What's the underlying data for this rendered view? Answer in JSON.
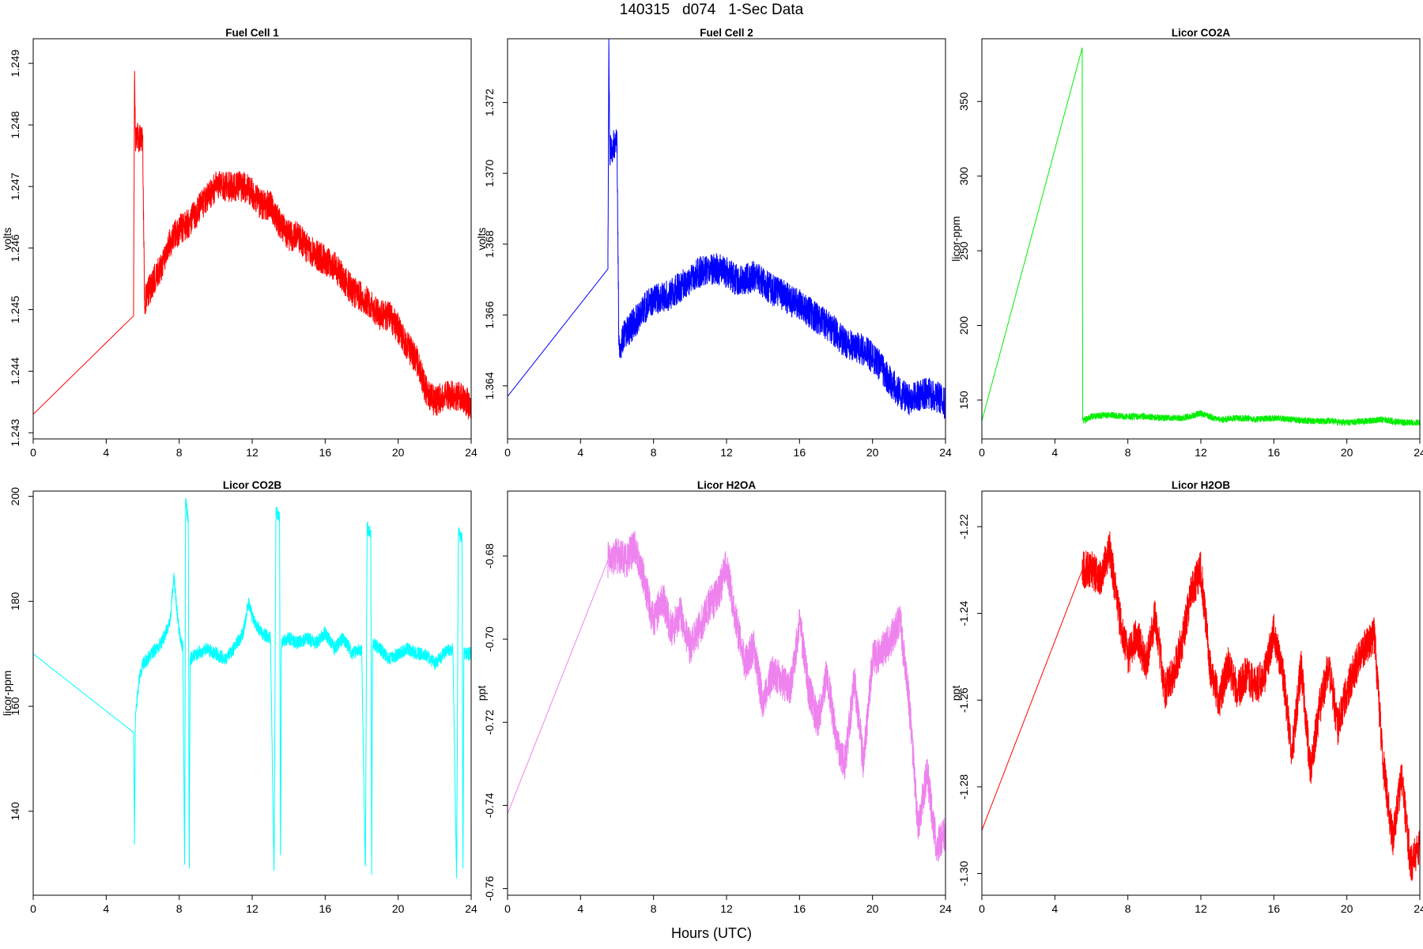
{
  "figure": {
    "title": "140315   d074   1-Sec Data",
    "xlabel": "Hours (UTC)"
  },
  "chart_data": [
    {
      "type": "line",
      "title": "Fuel Cell 1",
      "ylabel": "volts",
      "color": "#ff0000",
      "xlim": [
        0,
        24
      ],
      "ylim": [
        1.2429,
        1.2494
      ],
      "xticks": [
        0,
        4,
        8,
        12,
        16,
        20,
        24
      ],
      "yticks": [
        1.243,
        1.244,
        1.245,
        1.246,
        1.247,
        1.248,
        1.249
      ],
      "ytick_labels": [
        "1.243",
        "1.244",
        "1.245",
        "1.246",
        "1.247",
        "1.248",
        "1.249"
      ],
      "x": [
        0,
        5.5,
        5.55,
        5.6,
        5.8,
        6.0,
        6.1,
        6.2,
        6.5,
        7.0,
        7.5,
        8.0,
        8.5,
        9.0,
        9.5,
        10.0,
        10.5,
        11.0,
        11.5,
        12.0,
        12.5,
        13.0,
        13.5,
        14.0,
        14.5,
        15.0,
        15.5,
        16.0,
        16.5,
        17.0,
        17.5,
        18.0,
        18.5,
        19.0,
        19.5,
        20.0,
        20.5,
        21.0,
        21.5,
        22.0,
        22.5,
        23.0,
        23.5,
        24.0
      ],
      "y": [
        1.2433,
        1.2449,
        1.2489,
        1.2478,
        1.2478,
        1.2478,
        1.2451,
        1.2452,
        1.2454,
        1.2457,
        1.2461,
        1.2463,
        1.2464,
        1.2466,
        1.2468,
        1.247,
        1.247,
        1.247,
        1.247,
        1.2469,
        1.2467,
        1.2467,
        1.2464,
        1.2462,
        1.2462,
        1.246,
        1.2459,
        1.2458,
        1.2457,
        1.2455,
        1.2453,
        1.2452,
        1.2451,
        1.2449,
        1.2449,
        1.2447,
        1.2444,
        1.2442,
        1.2437,
        1.2435,
        1.2436,
        1.2436,
        1.2436,
        1.2434
      ],
      "noise": 0.00025
    },
    {
      "type": "line",
      "title": "Fuel Cell 2",
      "ylabel": "volts",
      "color": "#0000ff",
      "xlim": [
        0,
        24
      ],
      "ylim": [
        1.3625,
        1.3738
      ],
      "xticks": [
        0,
        4,
        8,
        12,
        16,
        20,
        24
      ],
      "yticks": [
        1.364,
        1.366,
        1.368,
        1.37,
        1.372
      ],
      "ytick_labels": [
        "1.364",
        "1.366",
        "1.368",
        "1.370",
        "1.372"
      ],
      "x": [
        0,
        5.5,
        5.55,
        5.6,
        5.8,
        6.0,
        6.1,
        6.2,
        6.5,
        7.0,
        7.5,
        8.0,
        8.5,
        9.0,
        9.5,
        10.0,
        10.5,
        11.0,
        11.5,
        12.0,
        12.5,
        13.0,
        13.5,
        14.0,
        14.5,
        15.0,
        15.5,
        16.0,
        16.5,
        17.0,
        17.5,
        18.0,
        18.5,
        19.0,
        19.5,
        20.0,
        20.5,
        21.0,
        21.5,
        22.0,
        22.5,
        23.0,
        23.5,
        24.0
      ],
      "y": [
        1.3637,
        1.3673,
        1.3735,
        1.3706,
        1.3708,
        1.3709,
        1.3652,
        1.3652,
        1.3655,
        1.3658,
        1.3662,
        1.3664,
        1.3665,
        1.3666,
        1.3668,
        1.367,
        1.3672,
        1.3673,
        1.3673,
        1.3672,
        1.367,
        1.367,
        1.3671,
        1.3669,
        1.3667,
        1.3666,
        1.3664,
        1.3663,
        1.3661,
        1.3659,
        1.3657,
        1.3655,
        1.3652,
        1.3651,
        1.365,
        1.3648,
        1.3645,
        1.3641,
        1.3638,
        1.3636,
        1.3637,
        1.3638,
        1.3637,
        1.3635
      ],
      "noise": 0.00045
    },
    {
      "type": "line",
      "title": "Licor CO2A",
      "ylabel": "licor-ppm",
      "color": "#00ee00",
      "xlim": [
        0,
        24
      ],
      "ylim": [
        124,
        392
      ],
      "xticks": [
        0,
        4,
        8,
        12,
        16,
        20,
        24
      ],
      "yticks": [
        150,
        200,
        250,
        300,
        350
      ],
      "ytick_labels": [
        "150",
        "200",
        "250",
        "300",
        "350"
      ],
      "x": [
        0,
        5.5,
        5.52,
        5.55,
        6.0,
        7.0,
        8.0,
        9.0,
        10.0,
        11.0,
        12.0,
        13.0,
        14.0,
        15.0,
        16.0,
        17.0,
        18.0,
        19.0,
        20.0,
        21.0,
        22.0,
        23.0,
        24.0
      ],
      "y": [
        136,
        386,
        138,
        136,
        139,
        140,
        139,
        139,
        138,
        138,
        141,
        137,
        138,
        137,
        138,
        137,
        136,
        136,
        135,
        136,
        137,
        135,
        135
      ],
      "noise": 2.2
    },
    {
      "type": "line",
      "title": "Licor CO2B",
      "ylabel": "licor-ppm",
      "color": "#00ffff",
      "xlim": [
        0,
        24
      ],
      "ylim": [
        124,
        201
      ],
      "xticks": [
        0,
        4,
        8,
        12,
        16,
        20,
        24
      ],
      "yticks": [
        140,
        160,
        180,
        200
      ],
      "ytick_labels": [
        "140",
        "160",
        "180",
        "200"
      ],
      "x": [
        0,
        5.5,
        5.55,
        5.6,
        5.8,
        6.0,
        6.5,
        7.0,
        7.5,
        7.7,
        8.0,
        8.2,
        8.3,
        8.35,
        8.5,
        8.55,
        8.6,
        9.0,
        9.5,
        10.0,
        10.5,
        11.0,
        11.5,
        11.8,
        12.0,
        12.5,
        13.0,
        13.2,
        13.3,
        13.5,
        13.55,
        13.6,
        14.0,
        14.5,
        15.0,
        15.5,
        16.0,
        16.5,
        17.0,
        17.5,
        18.0,
        18.2,
        18.3,
        18.5,
        18.55,
        18.6,
        19.0,
        19.5,
        20.0,
        20.5,
        21.0,
        21.5,
        22.0,
        22.5,
        23.0,
        23.2,
        23.3,
        23.5,
        23.55,
        23.6,
        24.0
      ],
      "y": [
        170,
        155,
        134,
        158,
        165,
        168,
        170,
        172,
        176,
        185,
        174,
        171,
        128,
        199,
        195,
        128,
        169,
        170,
        171,
        170,
        169,
        171,
        174,
        180,
        177,
        174,
        173,
        128,
        197,
        196,
        129,
        172,
        173,
        172,
        173,
        172,
        174,
        171,
        173,
        170,
        171,
        128,
        194,
        193,
        128,
        172,
        171,
        169,
        170,
        171,
        170,
        170,
        168,
        170,
        171,
        127,
        193,
        192,
        127,
        170,
        170
      ],
      "noise": 1.3
    },
    {
      "type": "line",
      "title": "Licor H2OA",
      "ylabel": "ppt",
      "color": "#ee82ee",
      "xlim": [
        0,
        24
      ],
      "ylim": [
        -0.7616,
        -0.6644
      ],
      "xticks": [
        0,
        4,
        8,
        12,
        16,
        20,
        24
      ],
      "yticks": [
        -0.76,
        -0.74,
        -0.72,
        -0.7,
        -0.68
      ],
      "ytick_labels": [
        "-0.76",
        "-0.74",
        "-0.72",
        "-0.70",
        "-0.68"
      ],
      "x": [
        0,
        5.5,
        6.0,
        6.5,
        7.0,
        7.5,
        8.0,
        8.5,
        9.0,
        9.5,
        10.0,
        10.5,
        11.0,
        11.5,
        12.0,
        12.5,
        13.0,
        13.5,
        14.0,
        14.5,
        15.0,
        15.5,
        16.0,
        16.5,
        17.0,
        17.5,
        18.0,
        18.5,
        19.0,
        19.5,
        20.0,
        20.5,
        21.0,
        21.5,
        22.0,
        22.5,
        23.0,
        23.5,
        24.0
      ],
      "y": [
        -0.742,
        -0.681,
        -0.68,
        -0.681,
        -0.678,
        -0.686,
        -0.696,
        -0.69,
        -0.698,
        -0.694,
        -0.702,
        -0.698,
        -0.692,
        -0.69,
        -0.682,
        -0.695,
        -0.706,
        -0.702,
        -0.716,
        -0.708,
        -0.71,
        -0.712,
        -0.696,
        -0.712,
        -0.72,
        -0.708,
        -0.724,
        -0.73,
        -0.71,
        -0.73,
        -0.705,
        -0.703,
        -0.7,
        -0.695,
        -0.715,
        -0.745,
        -0.732,
        -0.75,
        -0.746
      ],
      "noise": 0.0045
    },
    {
      "type": "line",
      "title": "Licor H2OB",
      "ylabel": "ppt",
      "color": "#ff0000",
      "xlim": [
        0,
        24
      ],
      "ylim": [
        -1.305,
        -1.2118
      ],
      "xticks": [
        0,
        4,
        8,
        12,
        16,
        20,
        24
      ],
      "yticks": [
        -1.3,
        -1.28,
        -1.26,
        -1.24,
        -1.22
      ],
      "ytick_labels": [
        "-1.30",
        "-1.28",
        "-1.26",
        "-1.24",
        "-1.22"
      ],
      "x": [
        0,
        5.5,
        6.0,
        6.5,
        7.0,
        7.5,
        8.0,
        8.5,
        9.0,
        9.5,
        10.0,
        10.5,
        11.0,
        11.5,
        12.0,
        12.5,
        13.0,
        13.5,
        14.0,
        14.5,
        15.0,
        15.5,
        16.0,
        16.5,
        17.0,
        17.5,
        18.0,
        18.5,
        19.0,
        19.5,
        20.0,
        20.5,
        21.0,
        21.5,
        22.0,
        22.5,
        23.0,
        23.5,
        24.0
      ],
      "y": [
        -1.29,
        -1.23,
        -1.23,
        -1.232,
        -1.225,
        -1.24,
        -1.25,
        -1.245,
        -1.252,
        -1.24,
        -1.258,
        -1.254,
        -1.246,
        -1.235,
        -1.23,
        -1.252,
        -1.26,
        -1.252,
        -1.258,
        -1.254,
        -1.257,
        -1.254,
        -1.244,
        -1.254,
        -1.272,
        -1.252,
        -1.276,
        -1.262,
        -1.252,
        -1.266,
        -1.258,
        -1.252,
        -1.248,
        -1.245,
        -1.275,
        -1.292,
        -1.278,
        -1.298,
        -1.294
      ],
      "noise": 0.0045
    }
  ]
}
